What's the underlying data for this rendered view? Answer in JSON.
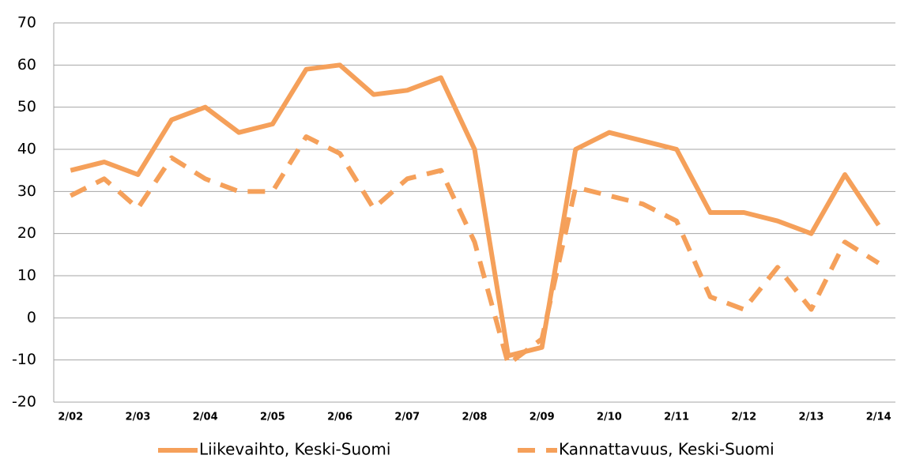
{
  "chart_data": {
    "type": "line",
    "categories": [
      "2/02",
      null,
      "2/03",
      null,
      "2/04",
      null,
      "2/05",
      null,
      "2/06",
      null,
      "2/07",
      null,
      "2/08",
      null,
      "2/09",
      null,
      "2/10",
      null,
      "2/11",
      null,
      "2/12",
      null,
      "2/13",
      null,
      "2/14"
    ],
    "series": [
      {
        "name": "Liikevaihto, Keski-Suomi",
        "color": "#f5a05a",
        "dash": false,
        "values": [
          35,
          37,
          34,
          47,
          50,
          44,
          46,
          59,
          60,
          53,
          54,
          57,
          40,
          -9,
          -7,
          40,
          44,
          42,
          40,
          25,
          25,
          23,
          20,
          34,
          22
        ]
      },
      {
        "name": "Kannattavuus, Keski-Suomi",
        "color": "#f5a05a",
        "dash": true,
        "values": [
          29,
          33,
          26,
          38,
          33,
          30,
          30,
          43,
          39,
          26,
          33,
          35,
          18,
          -11,
          -5,
          31,
          29,
          27,
          23,
          5,
          2,
          12,
          2,
          18,
          13
        ]
      }
    ],
    "ylim": [
      -20,
      70
    ],
    "yticks": [
      -20,
      -10,
      0,
      10,
      20,
      30,
      40,
      50,
      60,
      70
    ],
    "grid": true,
    "legend": "bottom"
  }
}
